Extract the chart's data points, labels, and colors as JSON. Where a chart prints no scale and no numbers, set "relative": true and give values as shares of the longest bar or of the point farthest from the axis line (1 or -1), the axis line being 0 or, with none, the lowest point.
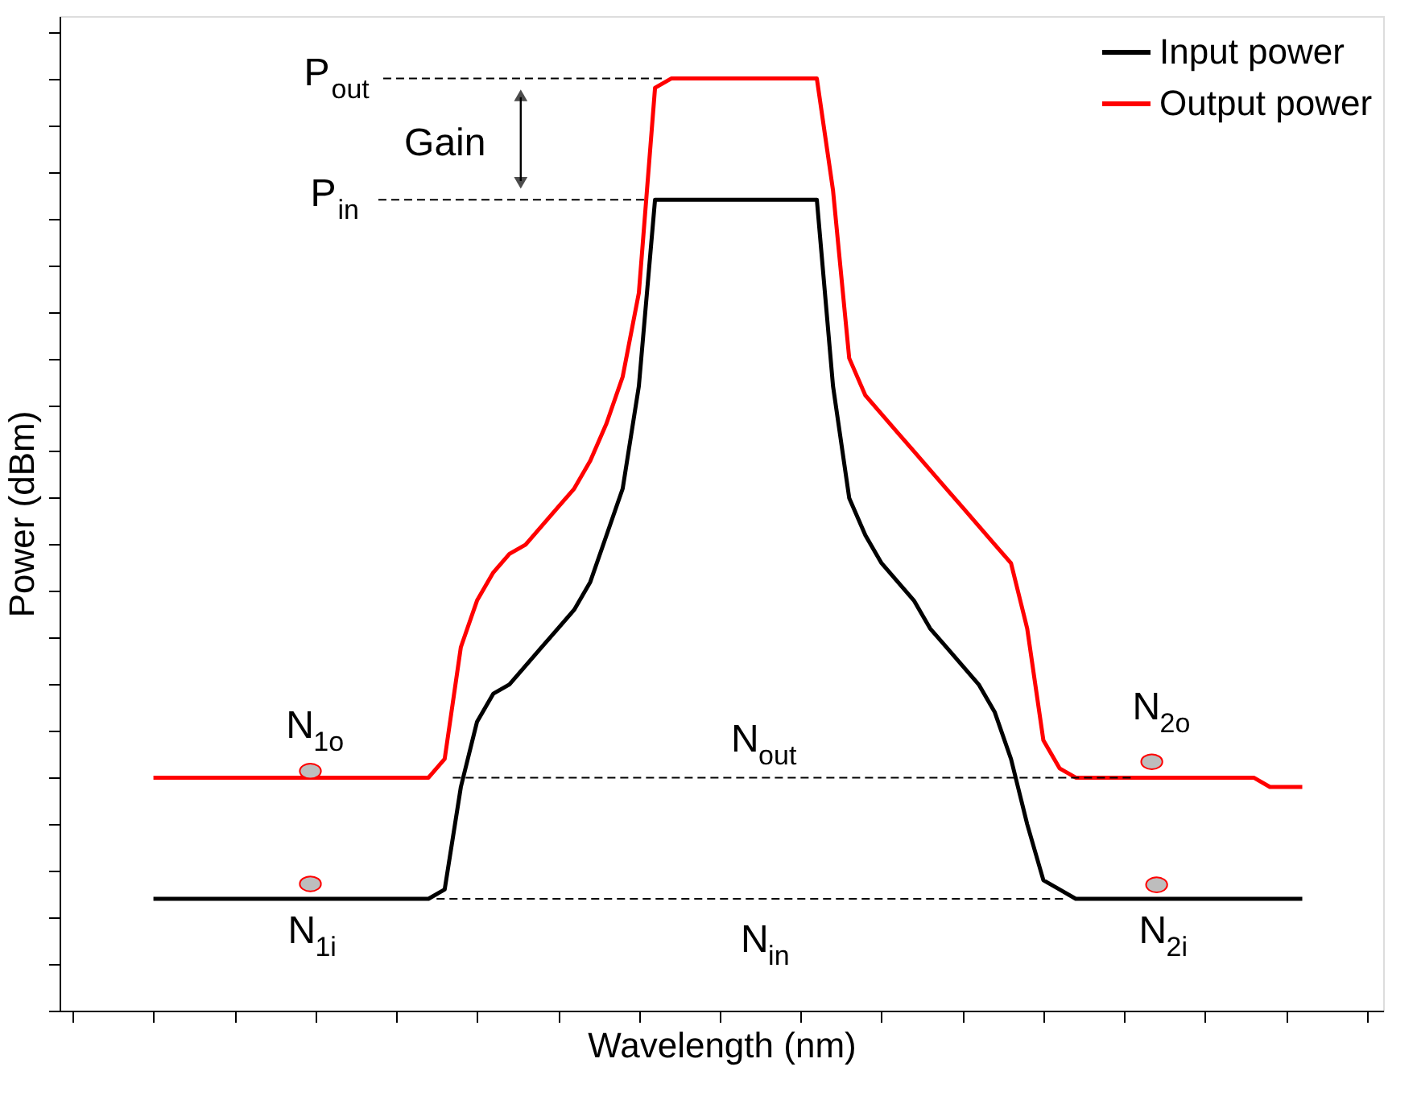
{
  "chart_data": {
    "type": "line",
    "relative": true,
    "xlabel": "Wavelength (nm)",
    "ylabel": "Power (dBm)",
    "categories": [
      null,
      null,
      null,
      null,
      null,
      null,
      null,
      null,
      null,
      null,
      null,
      null,
      null,
      null,
      null,
      null,
      null,
      null,
      null,
      null,
      null,
      null,
      null,
      null,
      null,
      null,
      null,
      null,
      null,
      null,
      null,
      null,
      null,
      null,
      null,
      null,
      null,
      null,
      null,
      null,
      null,
      null,
      null,
      null,
      null,
      null,
      null,
      null,
      null,
      null,
      null,
      null,
      null,
      null,
      null,
      null,
      null,
      null,
      null,
      null,
      null,
      null,
      null,
      null,
      null,
      null,
      null,
      null,
      null,
      null,
      null,
      null
    ],
    "series": [
      {
        "name": "Input power",
        "color": "#000000",
        "values": [
          0.12,
          0.12,
          0.12,
          0.12,
          0.12,
          0.12,
          0.12,
          0.12,
          0.12,
          0.12,
          0.12,
          0.12,
          0.12,
          0.12,
          0.12,
          0.12,
          0.12,
          0.12,
          0.13,
          0.24,
          0.31,
          0.34,
          0.35,
          0.37,
          0.39,
          0.41,
          0.43,
          0.46,
          0.51,
          0.56,
          0.67,
          0.87,
          0.87,
          0.87,
          0.87,
          0.87,
          0.87,
          0.87,
          0.87,
          0.87,
          0.87,
          0.87,
          0.67,
          0.55,
          0.51,
          0.48,
          0.46,
          0.44,
          0.41,
          0.39,
          0.37,
          0.35,
          0.32,
          0.27,
          0.2,
          0.14,
          0.13,
          0.12,
          0.12,
          0.12,
          0.12,
          0.12,
          0.12,
          0.12,
          0.12,
          0.12,
          0.12,
          0.12,
          0.12,
          0.12,
          0.12,
          0.12
        ]
      },
      {
        "name": "Output power",
        "color": "#ff0000",
        "values": [
          0.25,
          0.25,
          0.25,
          0.25,
          0.25,
          0.25,
          0.25,
          0.25,
          0.25,
          0.25,
          0.25,
          0.25,
          0.25,
          0.25,
          0.25,
          0.25,
          0.25,
          0.25,
          0.27,
          0.39,
          0.44,
          0.47,
          0.49,
          0.5,
          0.52,
          0.54,
          0.56,
          0.59,
          0.63,
          0.68,
          0.77,
          0.99,
          1.0,
          1.0,
          1.0,
          1.0,
          1.0,
          1.0,
          1.0,
          1.0,
          1.0,
          1.0,
          0.88,
          0.7,
          0.66,
          0.64,
          0.62,
          0.6,
          0.58,
          0.56,
          0.54,
          0.52,
          0.5,
          0.48,
          0.41,
          0.29,
          0.26,
          0.25,
          0.25,
          0.25,
          0.25,
          0.25,
          0.25,
          0.25,
          0.25,
          0.25,
          0.25,
          0.25,
          0.25,
          0.24,
          0.24,
          0.24
        ]
      }
    ],
    "ref_lines": [
      {
        "axis": "y",
        "value": 1.0,
        "label": "P$_{out}$",
        "line_style": "dashed"
      },
      {
        "axis": "y",
        "value": 0.87,
        "label": "P$_{in}$",
        "line_style": "dashed"
      },
      {
        "axis": "y",
        "value": 0.25,
        "label": "N$_{out}$",
        "line_style": "dashed"
      },
      {
        "axis": "y",
        "value": 0.12,
        "label": "N$_{in}$",
        "line_style": "dashed"
      }
    ],
    "annotations": [
      "Gain",
      "N$_{1o}$",
      "N$_{2o}$",
      "N$_{1i}$",
      "N$_{2i}$"
    ],
    "legend": "top right",
    "grid": false,
    "tick_labels": false
  }
}
